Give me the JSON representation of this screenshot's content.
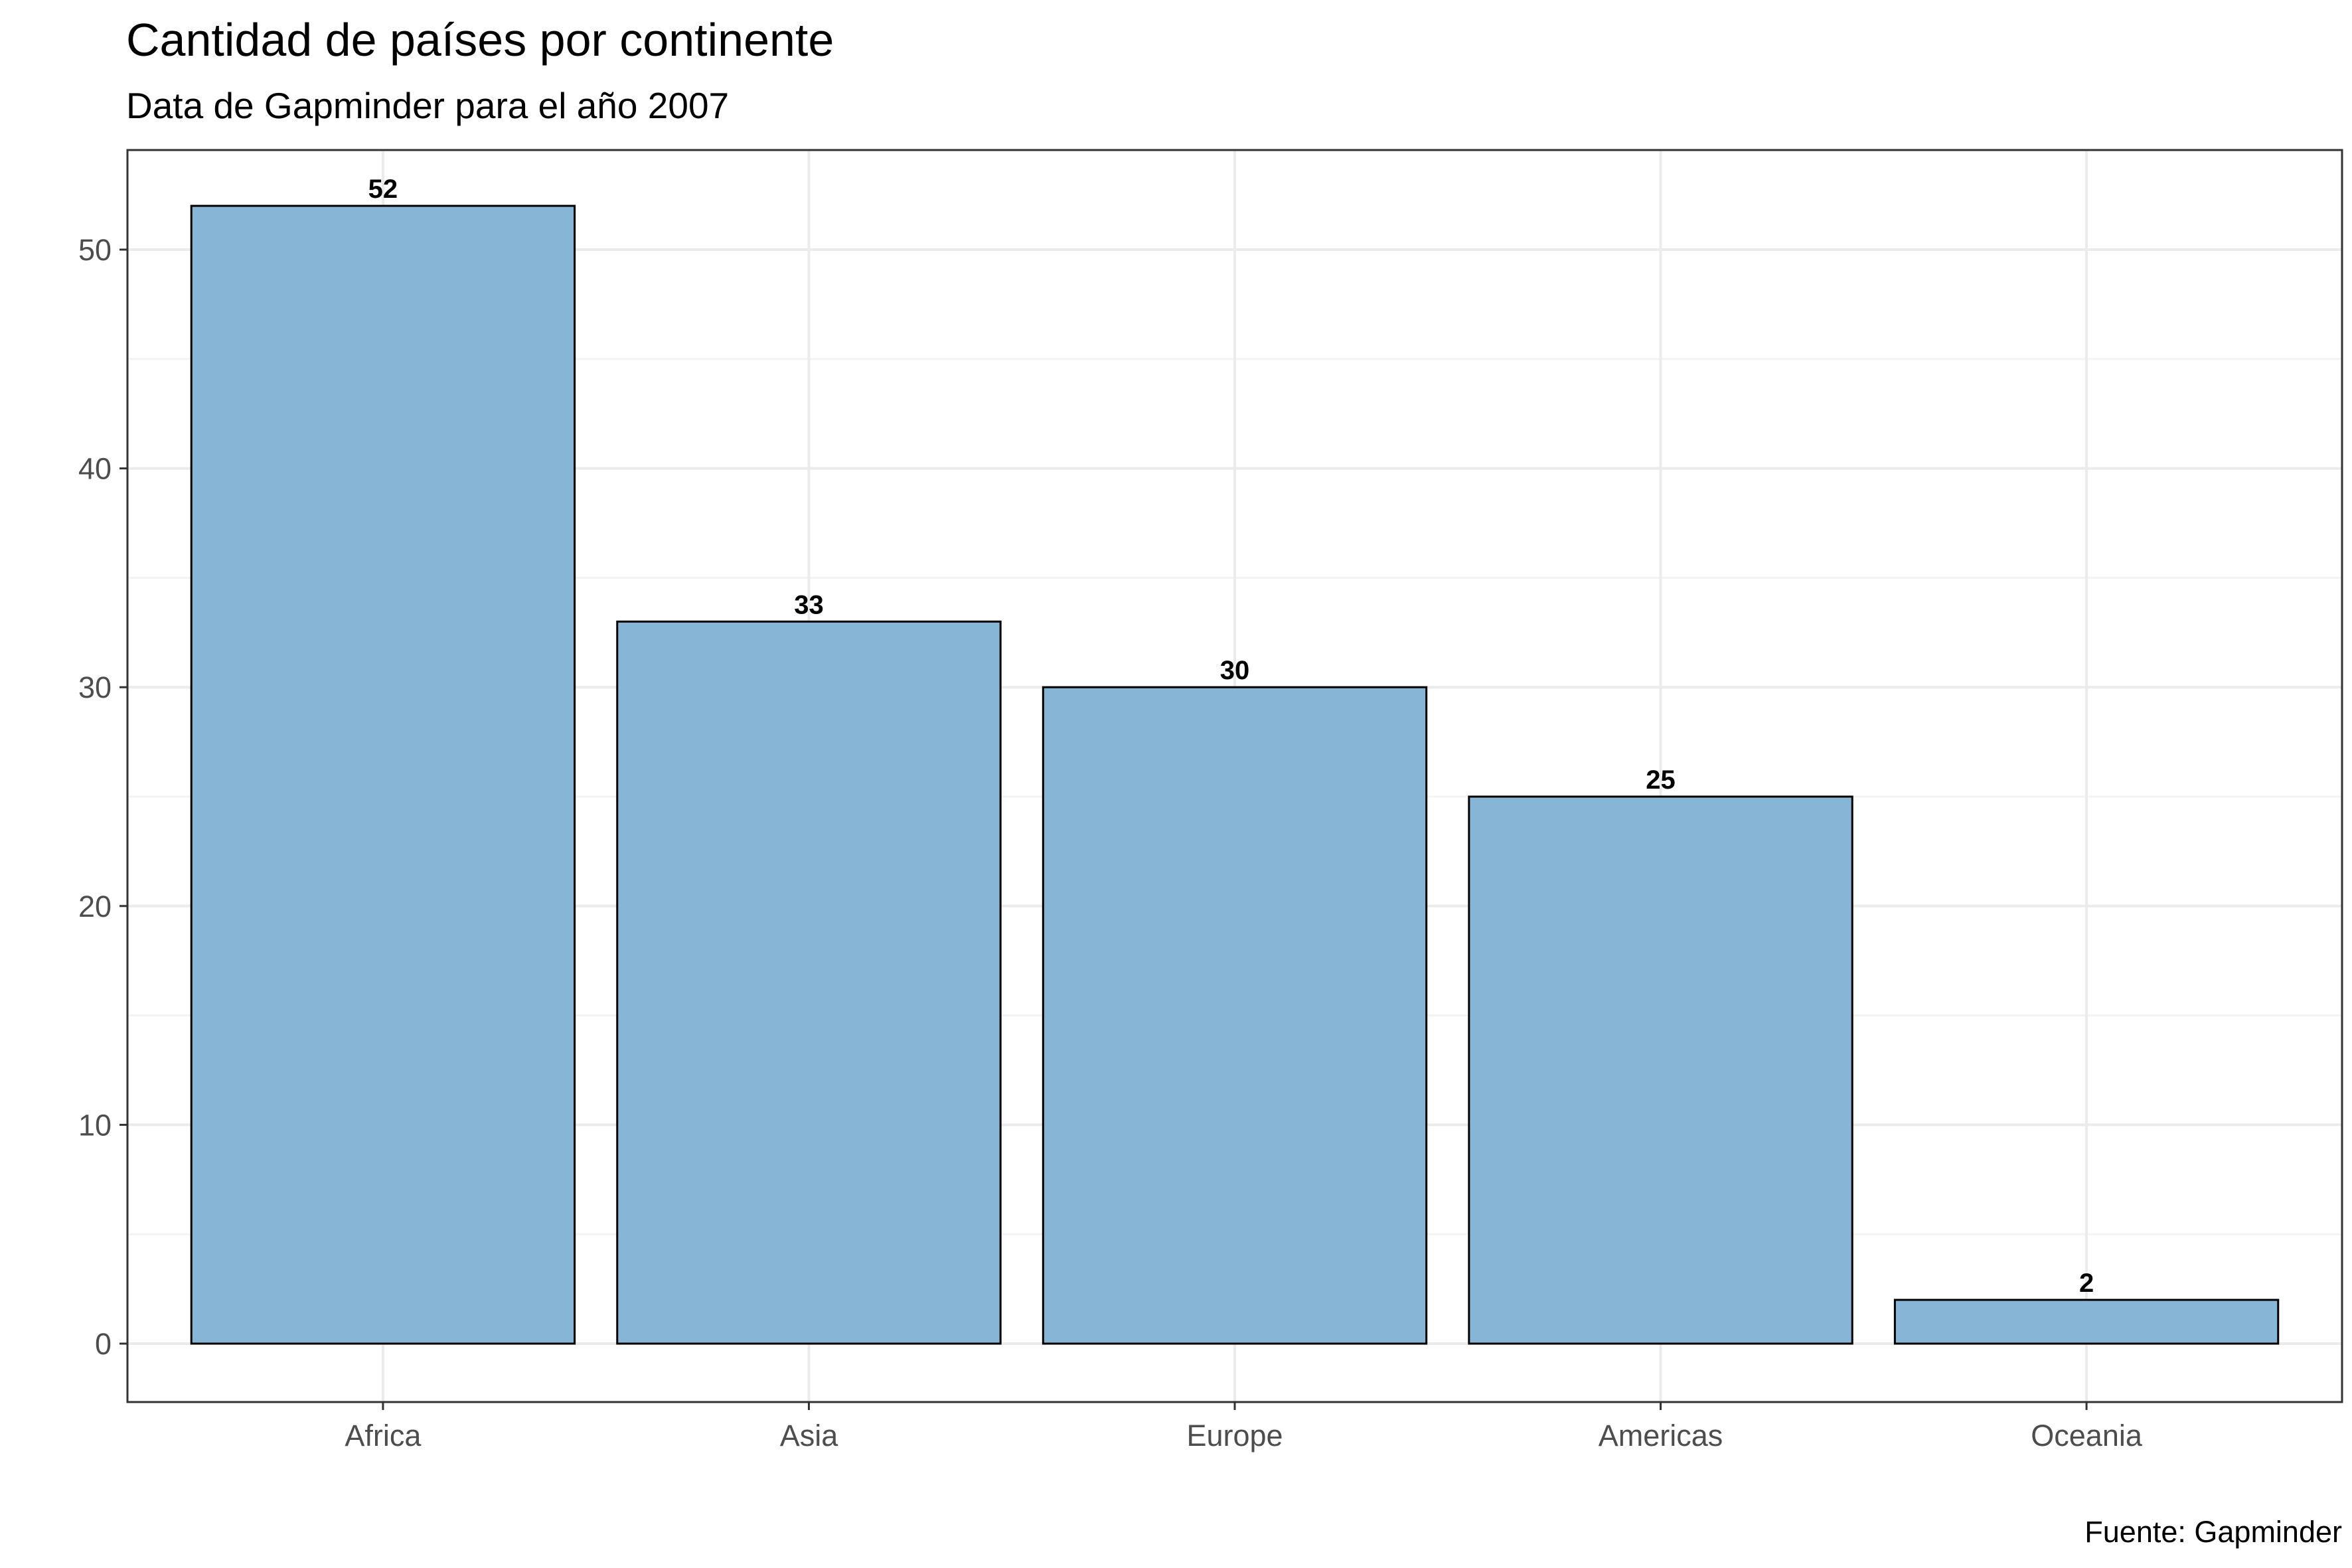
{
  "chart_data": {
    "type": "bar",
    "title": "Cantidad de países por continente",
    "subtitle": "Data de Gapminder para el año 2007",
    "caption": "Fuente: Gapminder",
    "xlabel": "",
    "ylabel": "",
    "categories": [
      "Africa",
      "Asia",
      "Europe",
      "Americas",
      "Oceania"
    ],
    "values": [
      52,
      33,
      30,
      25,
      2
    ],
    "data_labels": [
      "52",
      "33",
      "30",
      "25",
      "2"
    ],
    "ylim": [
      0,
      54.6
    ],
    "yticks": [
      0,
      10,
      20,
      30,
      40,
      50
    ],
    "grid": true,
    "legend": "none",
    "colors": {
      "bar_fill": "#87b5d6",
      "bar_stroke": "#000000",
      "grid_major": "#ebebeb",
      "grid_minor": "#f3f3f3",
      "panel_border": "#333333",
      "tick_text": "#4d4d4d"
    }
  }
}
